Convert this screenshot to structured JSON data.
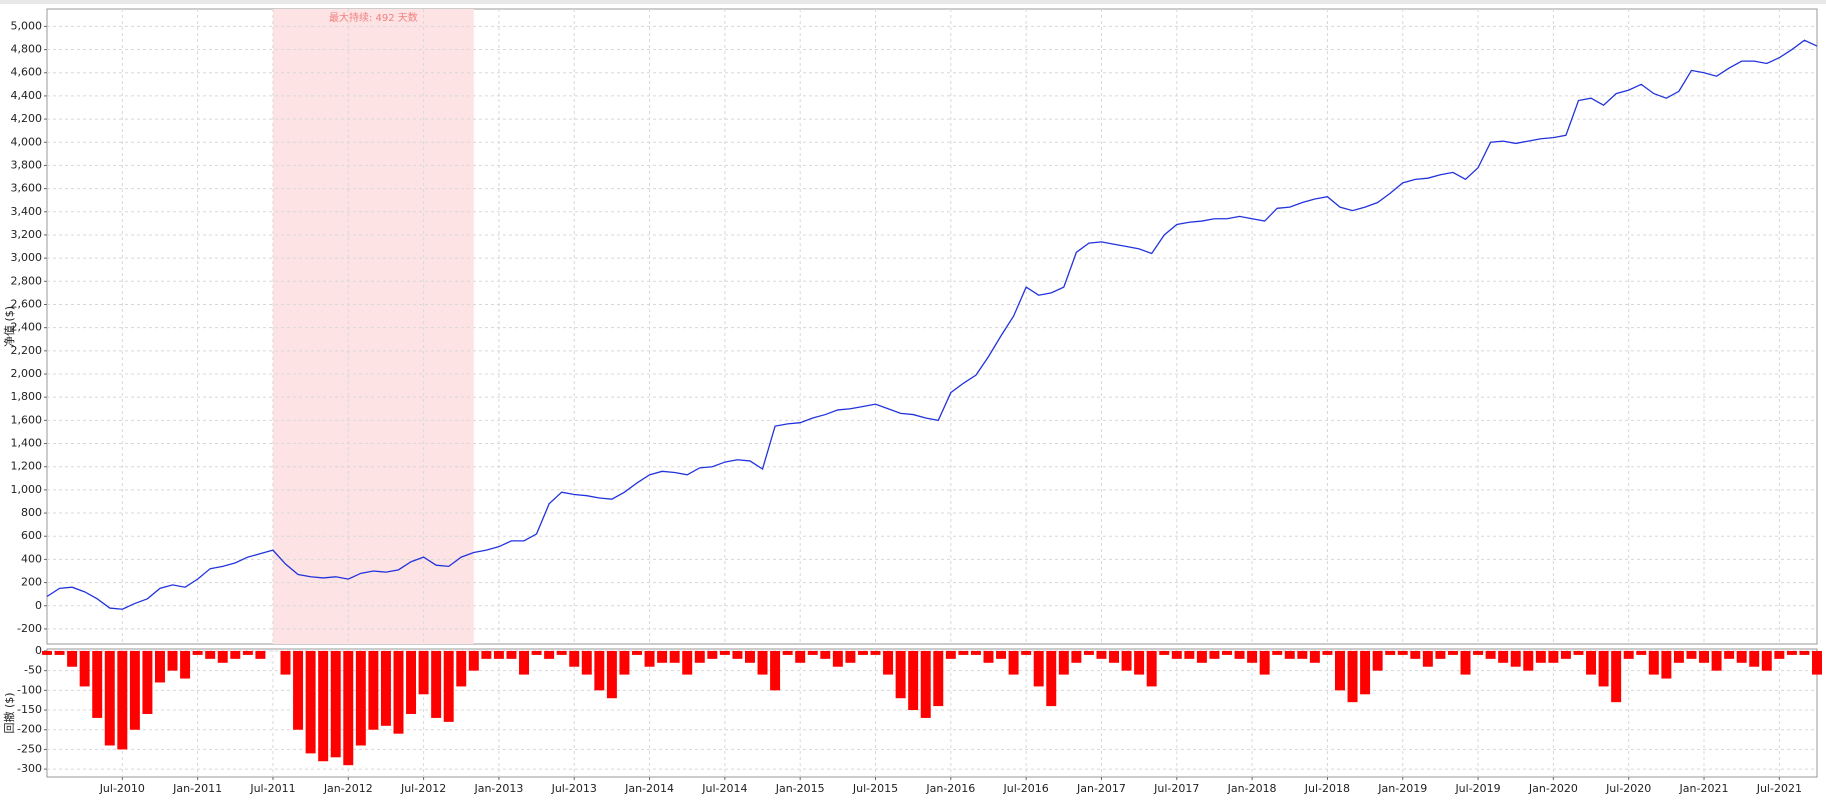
{
  "chart_data": [
    {
      "type": "line",
      "y_label": "净值 ($)",
      "annotation": "最大持续: 492 天数",
      "highlight_range": [
        "2011-07",
        "2012-11"
      ],
      "highlight_color": "#fde3e3",
      "annotation_color": "#f08080",
      "x": [
        "2010-01",
        "2010-02",
        "2010-03",
        "2010-04",
        "2010-05",
        "2010-06",
        "2010-07",
        "2010-08",
        "2010-09",
        "2010-10",
        "2010-11",
        "2010-12",
        "2011-01",
        "2011-02",
        "2011-03",
        "2011-04",
        "2011-05",
        "2011-06",
        "2011-07",
        "2011-08",
        "2011-09",
        "2011-10",
        "2011-11",
        "2011-12",
        "2012-01",
        "2012-02",
        "2012-03",
        "2012-04",
        "2012-05",
        "2012-06",
        "2012-07",
        "2012-08",
        "2012-09",
        "2012-10",
        "2012-11",
        "2012-12",
        "2013-01",
        "2013-02",
        "2013-03",
        "2013-04",
        "2013-05",
        "2013-06",
        "2013-07",
        "2013-08",
        "2013-09",
        "2013-10",
        "2013-11",
        "2013-12",
        "2014-01",
        "2014-02",
        "2014-03",
        "2014-04",
        "2014-05",
        "2014-06",
        "2014-07",
        "2014-08",
        "2014-09",
        "2014-10",
        "2014-11",
        "2014-12",
        "2015-01",
        "2015-02",
        "2015-03",
        "2015-04",
        "2015-05",
        "2015-06",
        "2015-07",
        "2015-08",
        "2015-09",
        "2015-10",
        "2015-11",
        "2015-12",
        "2016-01",
        "2016-02",
        "2016-03",
        "2016-04",
        "2016-05",
        "2016-06",
        "2016-07",
        "2016-08",
        "2016-09",
        "2016-10",
        "2016-11",
        "2016-12",
        "2017-01",
        "2017-02",
        "2017-03",
        "2017-04",
        "2017-05",
        "2017-06",
        "2017-07",
        "2017-08",
        "2017-09",
        "2017-10",
        "2017-11",
        "2017-12",
        "2018-01",
        "2018-02",
        "2018-03",
        "2018-04",
        "2018-05",
        "2018-06",
        "2018-07",
        "2018-08",
        "2018-09",
        "2018-10",
        "2018-11",
        "2018-12",
        "2019-01",
        "2019-02",
        "2019-03",
        "2019-04",
        "2019-05",
        "2019-06",
        "2019-07",
        "2019-08",
        "2019-09",
        "2019-10",
        "2019-11",
        "2019-12",
        "2020-01",
        "2020-02",
        "2020-03",
        "2020-04",
        "2020-05",
        "2020-06",
        "2020-07",
        "2020-08",
        "2020-09",
        "2020-10",
        "2020-11",
        "2020-12",
        "2021-01",
        "2021-02",
        "2021-03",
        "2021-04",
        "2021-05",
        "2021-06",
        "2021-07",
        "2021-08",
        "2021-09",
        "2021-10"
      ],
      "series": [
        {
          "name": "净值",
          "color": "#2233dd",
          "values": [
            80,
            150,
            160,
            120,
            60,
            -20,
            -30,
            20,
            60,
            150,
            180,
            160,
            230,
            320,
            340,
            370,
            420,
            450,
            480,
            360,
            270,
            250,
            240,
            250,
            230,
            280,
            300,
            290,
            310,
            380,
            420,
            350,
            340,
            420,
            460,
            480,
            510,
            560,
            560,
            620,
            880,
            980,
            960,
            950,
            930,
            920,
            980,
            1060,
            1130,
            1160,
            1150,
            1130,
            1190,
            1200,
            1240,
            1260,
            1250,
            1180,
            1550,
            1570,
            1580,
            1620,
            1650,
            1690,
            1700,
            1720,
            1740,
            1700,
            1660,
            1650,
            1620,
            1600,
            1840,
            1920,
            1990,
            2150,
            2330,
            2500,
            2750,
            2680,
            2700,
            2750,
            3050,
            3130,
            3140,
            3120,
            3100,
            3080,
            3040,
            3200,
            3290,
            3310,
            3320,
            3340,
            3340,
            3360,
            3340,
            3320,
            3430,
            3440,
            3480,
            3510,
            3530,
            3440,
            3410,
            3440,
            3480,
            3560,
            3650,
            3680,
            3690,
            3720,
            3740,
            3680,
            3780,
            4000,
            4010,
            3990,
            4010,
            4030,
            4040,
            4060,
            4360,
            4380,
            4320,
            4420,
            4450,
            4500,
            4420,
            4380,
            4440,
            4620,
            4600,
            4570,
            4640,
            4700,
            4700,
            4680,
            4730,
            4800,
            4880,
            4830
          ]
        }
      ],
      "xlim": [
        "2010-01",
        "2021-10"
      ],
      "ylim": [
        -330,
        5150
      ],
      "yticks": [
        -200,
        0,
        200,
        400,
        600,
        800,
        {
          "value": 1000,
          "label": "1,000"
        },
        {
          "value": 1200,
          "label": "1,200"
        },
        {
          "value": 1400,
          "label": "1,400"
        },
        {
          "value": 1600,
          "label": "1,600"
        },
        {
          "value": 1800,
          "label": "1,800"
        },
        {
          "value": 2000,
          "label": "2,000"
        },
        {
          "value": 2200,
          "label": "2,200"
        },
        {
          "value": 2400,
          "label": "2,400"
        },
        {
          "value": 2600,
          "label": "2,600"
        },
        {
          "value": 2800,
          "label": "2,800"
        },
        {
          "value": 3000,
          "label": "3,000"
        },
        {
          "value": 3200,
          "label": "3,200"
        },
        {
          "value": 3400,
          "label": "3,400"
        },
        {
          "value": 3600,
          "label": "3,600"
        },
        {
          "value": 3800,
          "label": "3,800"
        },
        {
          "value": 4000,
          "label": "4,000"
        },
        {
          "value": 4200,
          "label": "4,200"
        },
        {
          "value": 4400,
          "label": "4,400"
        },
        {
          "value": 4600,
          "label": "4,600"
        },
        {
          "value": 4800,
          "label": "4,800"
        },
        {
          "value": 5000,
          "label": "5,000"
        }
      ],
      "xticks": [
        {
          "value": "2010-07",
          "label": "Jul-2010"
        },
        {
          "value": "2011-01",
          "label": "Jan-2011"
        },
        {
          "value": "2011-07",
          "label": "Jul-2011"
        },
        {
          "value": "2012-01",
          "label": "Jan-2012"
        },
        {
          "value": "2012-07",
          "label": "Jul-2012"
        },
        {
          "value": "2013-01",
          "label": "Jan-2013"
        },
        {
          "value": "2013-07",
          "label": "Jul-2013"
        },
        {
          "value": "2014-01",
          "label": "Jan-2014"
        },
        {
          "value": "2014-07",
          "label": "Jul-2014"
        },
        {
          "value": "2015-01",
          "label": "Jan-2015"
        },
        {
          "value": "2015-07",
          "label": "Jul-2015"
        },
        {
          "value": "2016-01",
          "label": "Jan-2016"
        },
        {
          "value": "2016-07",
          "label": "Jul-2016"
        },
        {
          "value": "2017-01",
          "label": "Jan-2017"
        },
        {
          "value": "2017-07",
          "label": "Jul-2017"
        },
        {
          "value": "2018-01",
          "label": "Jan-2018"
        },
        {
          "value": "2018-07",
          "label": "Jul-2018"
        },
        {
          "value": "2019-01",
          "label": "Jan-2019"
        },
        {
          "value": "2019-07",
          "label": "Jul-2019"
        },
        {
          "value": "2020-01",
          "label": "Jan-2020"
        },
        {
          "value": "2020-07",
          "label": "Jul-2020"
        },
        {
          "value": "2021-01",
          "label": "Jan-2021"
        },
        {
          "value": "2021-07",
          "label": "Jul-2021"
        }
      ],
      "grid": true
    },
    {
      "type": "bar",
      "y_label": "回撤 ($)",
      "color": "#ff0000",
      "x": [
        "2010-01",
        "2010-02",
        "2010-03",
        "2010-04",
        "2010-05",
        "2010-06",
        "2010-07",
        "2010-08",
        "2010-09",
        "2010-10",
        "2010-11",
        "2010-12",
        "2011-01",
        "2011-02",
        "2011-03",
        "2011-04",
        "2011-05",
        "2011-06",
        "2011-07",
        "2011-08",
        "2011-09",
        "2011-10",
        "2011-11",
        "2011-12",
        "2012-01",
        "2012-02",
        "2012-03",
        "2012-04",
        "2012-05",
        "2012-06",
        "2012-07",
        "2012-08",
        "2012-09",
        "2012-10",
        "2012-11",
        "2012-12",
        "2013-01",
        "2013-02",
        "2013-03",
        "2013-04",
        "2013-05",
        "2013-06",
        "2013-07",
        "2013-08",
        "2013-09",
        "2013-10",
        "2013-11",
        "2013-12",
        "2014-01",
        "2014-02",
        "2014-03",
        "2014-04",
        "2014-05",
        "2014-06",
        "2014-07",
        "2014-08",
        "2014-09",
        "2014-10",
        "2014-11",
        "2014-12",
        "2015-01",
        "2015-02",
        "2015-03",
        "2015-04",
        "2015-05",
        "2015-06",
        "2015-07",
        "2015-08",
        "2015-09",
        "2015-10",
        "2015-11",
        "2015-12",
        "2016-01",
        "2016-02",
        "2016-03",
        "2016-04",
        "2016-05",
        "2016-06",
        "2016-07",
        "2016-08",
        "2016-09",
        "2016-10",
        "2016-11",
        "2016-12",
        "2017-01",
        "2017-02",
        "2017-03",
        "2017-04",
        "2017-05",
        "2017-06",
        "2017-07",
        "2017-08",
        "2017-09",
        "2017-10",
        "2017-11",
        "2017-12",
        "2018-01",
        "2018-02",
        "2018-03",
        "2018-04",
        "2018-05",
        "2018-06",
        "2018-07",
        "2018-08",
        "2018-09",
        "2018-10",
        "2018-11",
        "2018-12",
        "2019-01",
        "2019-02",
        "2019-03",
        "2019-04",
        "2019-05",
        "2019-06",
        "2019-07",
        "2019-08",
        "2019-09",
        "2019-10",
        "2019-11",
        "2019-12",
        "2020-01",
        "2020-02",
        "2020-03",
        "2020-04",
        "2020-05",
        "2020-06",
        "2020-07",
        "2020-08",
        "2020-09",
        "2020-10",
        "2020-11",
        "2020-12",
        "2021-01",
        "2021-02",
        "2021-03",
        "2021-04",
        "2021-05",
        "2021-06",
        "2021-07",
        "2021-08",
        "2021-09",
        "2021-10"
      ],
      "values": [
        -10,
        -10,
        -40,
        -90,
        -170,
        -240,
        -250,
        -200,
        -160,
        -80,
        -50,
        -70,
        -10,
        -20,
        -30,
        -20,
        -10,
        -20,
        0,
        -60,
        -200,
        -260,
        -280,
        -270,
        -290,
        -240,
        -200,
        -190,
        -210,
        -160,
        -110,
        -170,
        -180,
        -90,
        -50,
        -20,
        -20,
        -20,
        -60,
        -10,
        -20,
        -10,
        -40,
        -60,
        -100,
        -120,
        -60,
        -10,
        -40,
        -30,
        -30,
        -60,
        -30,
        -20,
        -10,
        -20,
        -30,
        -60,
        -100,
        -10,
        -30,
        -10,
        -20,
        -40,
        -30,
        -10,
        -10,
        -60,
        -120,
        -150,
        -170,
        -140,
        -20,
        -10,
        -10,
        -30,
        -20,
        -60,
        -10,
        -90,
        -140,
        -60,
        -30,
        -10,
        -20,
        -30,
        -50,
        -60,
        -90,
        -10,
        -20,
        -20,
        -30,
        -20,
        -10,
        -20,
        -30,
        -60,
        -10,
        -20,
        -20,
        -30,
        -10,
        -100,
        -130,
        -110,
        -50,
        -10,
        -10,
        -20,
        -40,
        -20,
        -10,
        -60,
        -10,
        -20,
        -30,
        -40,
        -50,
        -30,
        -30,
        -20,
        -10,
        -60,
        -90,
        -130,
        -20,
        -10,
        -60,
        -70,
        -30,
        -20,
        -30,
        -50,
        -20,
        -30,
        -40,
        -50,
        -20,
        -10,
        -10,
        -60
      ],
      "xlim": [
        "2010-01",
        "2021-10"
      ],
      "ylim": [
        -320,
        5
      ],
      "yticks": [
        -300,
        -250,
        -200,
        -150,
        -100,
        -50,
        0
      ],
      "grid": true
    }
  ]
}
